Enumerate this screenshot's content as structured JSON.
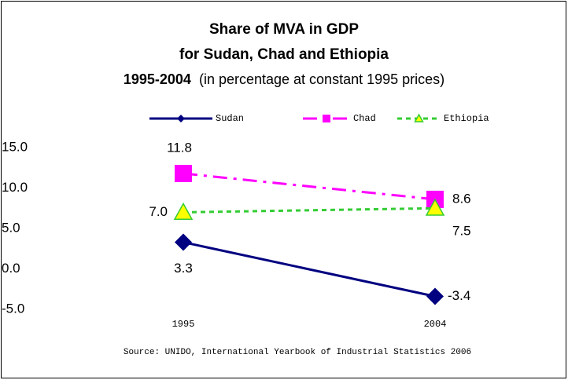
{
  "chart_data": {
    "type": "line",
    "title_lines": [
      "Share of MVA in GDP",
      "for Sudan, Chad and Ethiopia"
    ],
    "period": "1995-2004",
    "subtitle": "(in percentage at constant 1995 prices)",
    "categories": [
      "1995",
      "2004"
    ],
    "series": [
      {
        "name": "Sudan",
        "color": "#000080",
        "marker": "diamond",
        "dash": "solid",
        "values": [
          3.3,
          -3.4
        ],
        "value_labels": [
          "3.3",
          "-3.4"
        ]
      },
      {
        "name": "Chad",
        "color": "#ff00ff",
        "marker": "square",
        "dash": "dashdot",
        "values": [
          11.8,
          8.6
        ],
        "value_labels": [
          "11.8",
          "8.6"
        ]
      },
      {
        "name": "Ethiopia",
        "color": "#33cc33",
        "marker": "triangle",
        "marker_fill": "#ffff00",
        "dash": "dot",
        "values": [
          7.0,
          7.5
        ],
        "value_labels": [
          "7.0",
          "7.5"
        ]
      }
    ],
    "ylim": [
      -5,
      15
    ],
    "yticks": [
      {
        "value": -5,
        "label": "-5.0"
      },
      {
        "value": 0,
        "label": "0.0"
      },
      {
        "value": 5,
        "label": "5.0"
      },
      {
        "value": 10,
        "label": "10.0"
      },
      {
        "value": 15,
        "label": "15.0"
      }
    ],
    "source": "Source: UNIDO, International Yearbook of Industrial Statistics 2006"
  }
}
